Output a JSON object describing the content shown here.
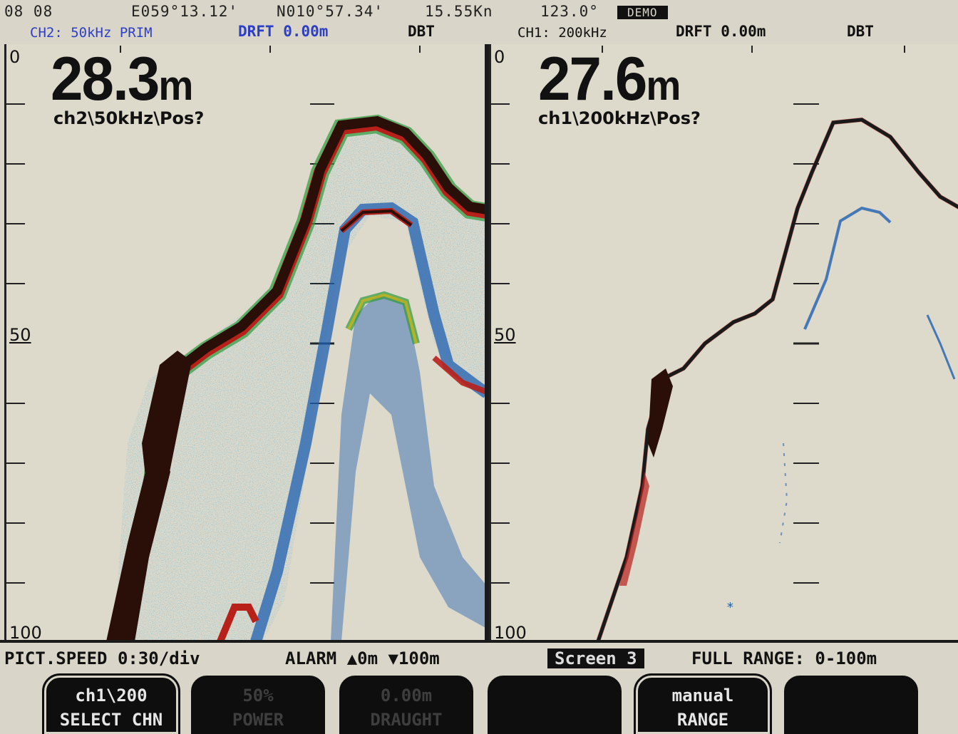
{
  "header": {
    "time": "08 08",
    "longitude": "E059°13.12'",
    "latitude": "N010°57.34'",
    "speed": "15.55Kn",
    "heading": "123.0°",
    "mode_badge": "DEMO"
  },
  "channels": {
    "left": {
      "info": "CH2:  50kHz PRIM",
      "draft": "DRFT 0.00m",
      "ref": "DBT",
      "depth_value": "28.3",
      "depth_unit": "m",
      "label": "ch2\\50kHz\\Pos?"
    },
    "right": {
      "info": "CH1:  200kHz",
      "draft": "DRFT 0.00m",
      "ref": "DBT",
      "depth_value": "27.6",
      "depth_unit": "m",
      "label": "ch1\\200kHz\\Pos?"
    }
  },
  "scale": {
    "top": "0",
    "mid": "50",
    "bottom": "100"
  },
  "status": {
    "pict_speed": "PICT.SPEED 0:30/div",
    "alarm": "ALARM ▲0m  ▼100m",
    "screen": "Screen  3",
    "full_range": "FULL RANGE: 0-100m"
  },
  "softkeys": [
    {
      "line1": "ch1\\200",
      "line2": "SELECT CHN",
      "state": "on"
    },
    {
      "line1": "50%",
      "line2": "POWER",
      "state": "off"
    },
    {
      "line1": "0.00m",
      "line2": "DRAUGHT",
      "state": "off"
    },
    {
      "line1": "",
      "line2": "",
      "state": "off"
    },
    {
      "line1": "manual",
      "line2": "RANGE",
      "state": "on"
    },
    {
      "line1": "",
      "line2": "",
      "state": "off"
    }
  ],
  "colors": {
    "background": "#d9d5c8",
    "echo_strong": "#2a0e08",
    "echo_red": "#b8201a",
    "echo_yellow": "#c9b21c",
    "echo_green": "#2c9a3a",
    "echo_blue": "#1f5fb0",
    "info_blue": "#2d3fc9"
  }
}
